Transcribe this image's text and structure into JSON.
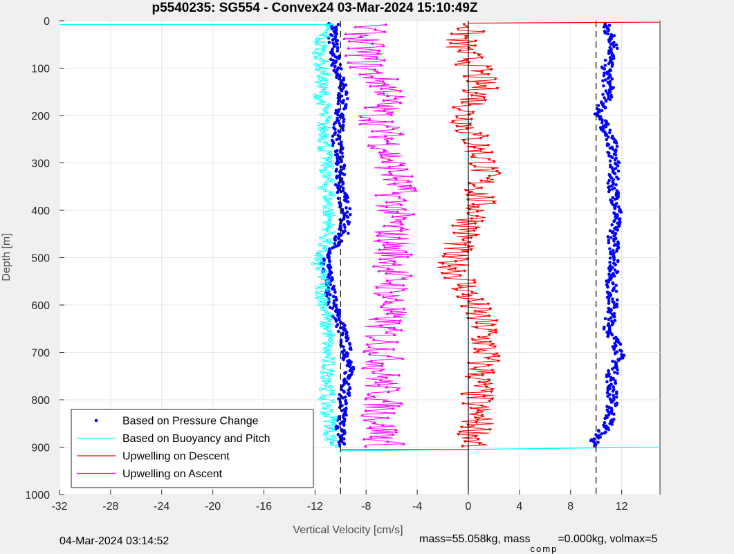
{
  "chart_data": {
    "type": "scatter",
    "title": "p5540235: SG554 - Convex24 03-Mar-2024 15:10:49Z",
    "xlabel": "Vertical Velocity [cm/s]",
    "ylabel": "Depth [m]",
    "xlim": [
      -32,
      15
    ],
    "ylim": [
      0,
      1000
    ],
    "y_reversed": true,
    "grid": true,
    "xticks": [
      -32,
      -28,
      -24,
      -20,
      -16,
      -12,
      -8,
      -4,
      0,
      4,
      8,
      12
    ],
    "xtick_labels": [
      "-32",
      "-28",
      "-24",
      "-20",
      "-16",
      "-12",
      "-8",
      "-4",
      "0",
      "4",
      "8",
      "12"
    ],
    "yticks": [
      0,
      100,
      200,
      300,
      400,
      500,
      600,
      700,
      800,
      900,
      1000
    ],
    "ytick_labels": [
      "0",
      "100",
      "200",
      "300",
      "400",
      "500",
      "600",
      "700",
      "800",
      "900",
      "1000"
    ],
    "legend_position": "bottom-left",
    "reference_lines": [
      {
        "x": -10,
        "style": "dashed",
        "color": "#000000"
      },
      {
        "x": 0,
        "style": "solid",
        "color": "#000000"
      },
      {
        "x": 10,
        "style": "dashed",
        "color": "#000000"
      }
    ],
    "series": [
      {
        "name": "Based on Pressure Change",
        "color": "#0000ff",
        "marker": "dot",
        "line": false,
        "depth": [
          0,
          50,
          100,
          150,
          200,
          250,
          300,
          350,
          400,
          450,
          500,
          550,
          600,
          650,
          700,
          750,
          800,
          850,
          900
        ],
        "descent": [
          -10.5,
          -10.6,
          -10.3,
          -9.8,
          -10.0,
          -10.3,
          -10.1,
          -10.0,
          -9.6,
          -9.8,
          -11.3,
          -10.9,
          -10.6,
          -9.9,
          -9.5,
          -9.3,
          -9.8,
          -10.0,
          -9.9
        ],
        "ascent": [
          10.5,
          11.5,
          10.8,
          11.0,
          10.2,
          11.2,
          11.4,
          11.3,
          11.7,
          11.3,
          11.5,
          11.2,
          11.3,
          11.0,
          11.9,
          11.2,
          11.3,
          11.0,
          9.5
        ]
      },
      {
        "name": "Based on Buoyancy and Pitch",
        "color": "#00ffff",
        "marker": "open-circle",
        "line": true,
        "depth": [
          0,
          50,
          100,
          150,
          200,
          250,
          300,
          350,
          400,
          450,
          500,
          550,
          600,
          650,
          700,
          750,
          800,
          850,
          900
        ],
        "values": [
          -11.0,
          -11.6,
          -11.4,
          -11.5,
          -11.3,
          -11.2,
          -11.2,
          -11.1,
          -10.8,
          -11.0,
          -11.8,
          -11.4,
          -11.3,
          -11.0,
          -11.1,
          -10.9,
          -11.1,
          -10.8,
          -10.6
        ]
      },
      {
        "name": "Upwelling on Descent",
        "color": "#ff0000",
        "marker": "triangle-down",
        "line": true,
        "depth": [
          0,
          50,
          100,
          150,
          200,
          250,
          300,
          350,
          400,
          450,
          500,
          550,
          600,
          650,
          700,
          750,
          800,
          850,
          900
        ],
        "values": [
          0.5,
          -0.8,
          0.6,
          1.0,
          -0.3,
          0.4,
          1.3,
          1.0,
          0.8,
          -0.2,
          -1.5,
          -0.4,
          0.3,
          1.2,
          1.3,
          0.9,
          0.6,
          0.7,
          0.5
        ]
      },
      {
        "name": "Upwelling on Ascent",
        "color": "#ff00ff",
        "marker": "triangle-up",
        "line": true,
        "depth": [
          0,
          50,
          100,
          150,
          200,
          250,
          300,
          350,
          400,
          450,
          500,
          550,
          600,
          650,
          700,
          750,
          800,
          850,
          900
        ],
        "values": [
          -8.0,
          -8.2,
          -7.9,
          -6.0,
          -7.2,
          -6.3,
          -6.0,
          -5.6,
          -5.8,
          -6.0,
          -5.8,
          -5.9,
          -6.1,
          -6.8,
          -6.6,
          -6.8,
          -6.7,
          -6.9,
          -6.5
        ]
      }
    ]
  },
  "footer": {
    "date": "04-Mar-2024 03:14:52",
    "mass_prefix": "mass=55.058kg, mass",
    "mass_sub": "comp",
    "mass_suffix": "=0.000kg, volmax=5"
  }
}
